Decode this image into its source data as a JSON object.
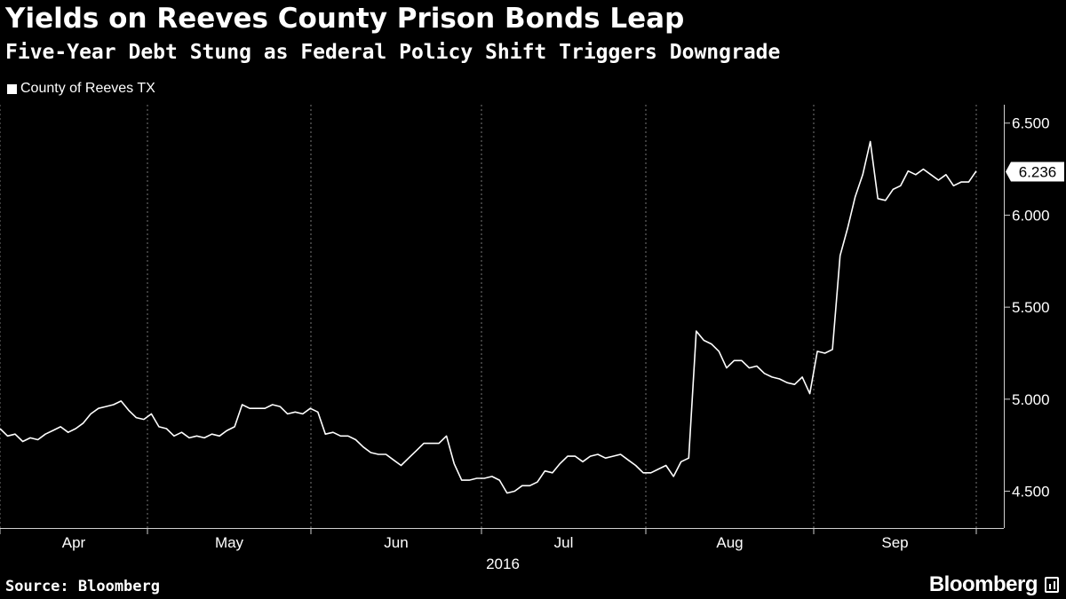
{
  "header": {
    "title": "Yields on Reeves County Prison Bonds Leap",
    "subtitle": "Five-Year Debt Stung as Federal Policy Shift Triggers Downgrade"
  },
  "footer": {
    "source": "Source: Bloomberg",
    "brand": "Bloomberg",
    "brand_icon": "chart-box-icon"
  },
  "colors": {
    "background": "#000000",
    "line": "#ffffff",
    "grid": "#777777",
    "callout": "#ffffff"
  },
  "chart_data": {
    "type": "line",
    "title": "Yields on Reeves County Prison Bonds Leap",
    "subtitle": "Five-Year Debt Stung as Federal Policy Shift Triggers Downgrade",
    "xlabel": "2016",
    "ylabel": "",
    "ylim": [
      4.3,
      6.6
    ],
    "yticks": [
      4.5,
      5.0,
      5.5,
      6.0,
      6.5
    ],
    "ytick_labels": [
      "4.500",
      "5.000",
      "5.500",
      "6.000",
      "6.500"
    ],
    "y_axis_side": "right",
    "x_tick_labels": [
      "Apr",
      "May",
      "Jun",
      "Jul",
      "Aug",
      "Sep"
    ],
    "grid": {
      "vertical": true,
      "horizontal": false,
      "style": "dotted"
    },
    "legend": {
      "placement": "top-left",
      "entries": [
        "County of Reeves TX"
      ]
    },
    "last_value_label": "6.236",
    "series": [
      {
        "name": "County of Reeves TX",
        "values": [
          4.84,
          4.8,
          4.81,
          4.77,
          4.79,
          4.78,
          4.81,
          4.83,
          4.85,
          4.82,
          4.84,
          4.87,
          4.92,
          4.95,
          4.96,
          4.97,
          4.99,
          4.94,
          4.9,
          4.89,
          4.92,
          4.85,
          4.84,
          4.8,
          4.82,
          4.79,
          4.8,
          4.79,
          4.81,
          4.8,
          4.83,
          4.85,
          4.97,
          4.95,
          4.95,
          4.95,
          4.97,
          4.96,
          4.92,
          4.93,
          4.92,
          4.95,
          4.93,
          4.81,
          4.82,
          4.8,
          4.8,
          4.78,
          4.74,
          4.71,
          4.7,
          4.7,
          4.67,
          4.64,
          4.68,
          4.72,
          4.76,
          4.76,
          4.76,
          4.8,
          4.65,
          4.56,
          4.56,
          4.57,
          4.57,
          4.58,
          4.56,
          4.49,
          4.5,
          4.53,
          4.53,
          4.55,
          4.61,
          4.6,
          4.65,
          4.69,
          4.69,
          4.66,
          4.69,
          4.7,
          4.68,
          4.69,
          4.7,
          4.67,
          4.64,
          4.6,
          4.6,
          4.62,
          4.64,
          4.58,
          4.66,
          4.68,
          5.37,
          5.32,
          5.3,
          5.26,
          5.17,
          5.21,
          5.21,
          5.17,
          5.18,
          5.14,
          5.12,
          5.11,
          5.09,
          5.08,
          5.12,
          5.03,
          5.26,
          5.25,
          5.27,
          5.78,
          5.93,
          6.1,
          6.22,
          6.4,
          6.09,
          6.08,
          6.14,
          6.16,
          6.24,
          6.22,
          6.25,
          6.22,
          6.19,
          6.22,
          6.16,
          6.18,
          6.18,
          6.24
        ]
      }
    ]
  }
}
